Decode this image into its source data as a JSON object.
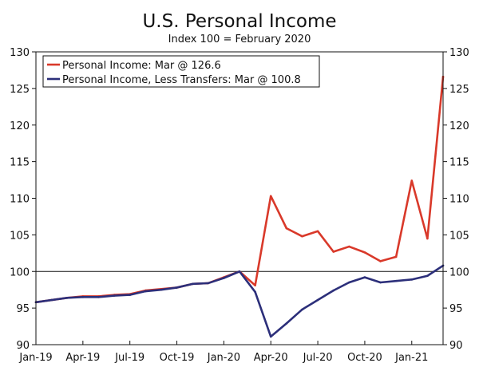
{
  "chart_data": {
    "type": "line",
    "title": "U.S. Personal Income",
    "subtitle": "Index 100 = February 2020",
    "xlabel": "",
    "ylabel": "",
    "ylim": [
      90,
      130
    ],
    "yticks": [
      90,
      95,
      100,
      105,
      110,
      115,
      120,
      125,
      130
    ],
    "x": [
      "Jan-19",
      "Feb-19",
      "Mar-19",
      "Apr-19",
      "May-19",
      "Jun-19",
      "Jul-19",
      "Aug-19",
      "Sep-19",
      "Oct-19",
      "Nov-19",
      "Dec-19",
      "Jan-20",
      "Feb-20",
      "Mar-20",
      "Apr-20",
      "May-20",
      "Jun-20",
      "Jul-20",
      "Aug-20",
      "Sep-20",
      "Oct-20",
      "Nov-20",
      "Dec-20",
      "Jan-21",
      "Feb-21",
      "Mar-21"
    ],
    "xticks": [
      "Jan-19",
      "Apr-19",
      "Jul-19",
      "Oct-19",
      "Jan-20",
      "Apr-20",
      "Jul-20",
      "Oct-20",
      "Jan-21"
    ],
    "reference_line": 100,
    "legend_position": "top-left",
    "series": [
      {
        "name": "Personal Income: Mar @ 126.6",
        "color": "#d9392a",
        "values": [
          95.8,
          96.1,
          96.4,
          96.6,
          96.6,
          96.8,
          96.9,
          97.4,
          97.6,
          97.8,
          98.3,
          98.4,
          99.2,
          100.0,
          98.1,
          110.3,
          105.9,
          104.8,
          105.5,
          102.7,
          103.4,
          102.6,
          101.4,
          102.0,
          112.4,
          104.5,
          126.6
        ]
      },
      {
        "name": "Personal Income, Less Transfers: Mar @ 100.8",
        "color": "#2c2f7a",
        "values": [
          95.8,
          96.1,
          96.4,
          96.5,
          96.5,
          96.7,
          96.8,
          97.3,
          97.5,
          97.8,
          98.3,
          98.4,
          99.1,
          100.0,
          97.2,
          91.1,
          92.9,
          94.8,
          96.1,
          97.4,
          98.5,
          99.2,
          98.5,
          98.7,
          98.9,
          99.4,
          100.8
        ]
      }
    ]
  }
}
